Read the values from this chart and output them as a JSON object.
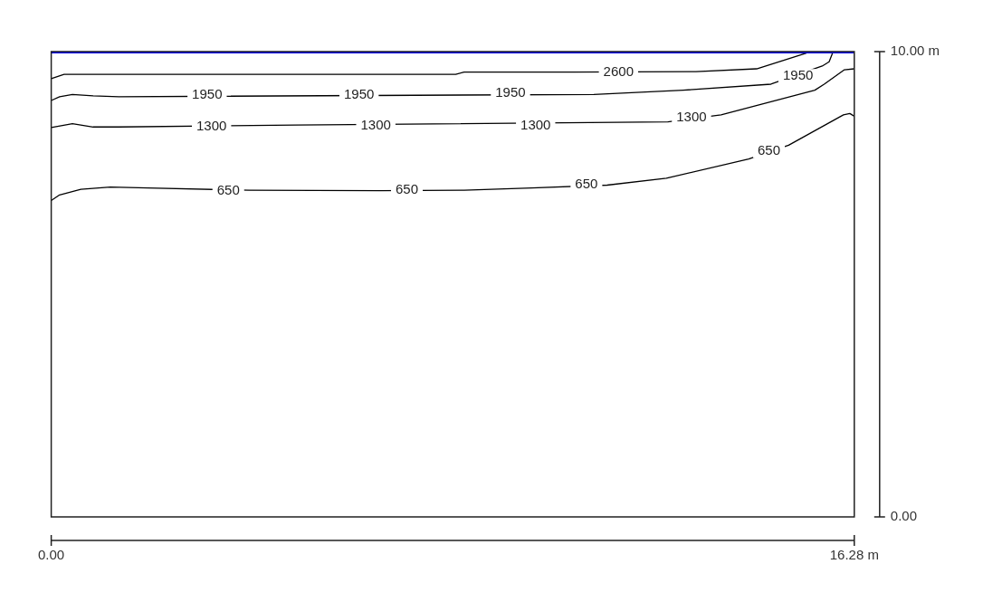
{
  "chart_data": {
    "type": "line",
    "xlim": [
      0,
      16.28
    ],
    "ylim": [
      0,
      10
    ],
    "xticks": [
      {
        "value": 0,
        "label": "0.00"
      },
      {
        "value": 16.28,
        "label": "16.28 m"
      }
    ],
    "yticks": [
      {
        "value": 0,
        "label": "0.00"
      },
      {
        "value": 10,
        "label": "10.00 m"
      }
    ],
    "series": [
      {
        "color": "#0000ee",
        "x": [
          0,
          16.28
        ],
        "values": [
          10,
          10
        ]
      },
      {
        "color": "#000000",
        "x": [
          0,
          0.26,
          8.2,
          8.37,
          10.6,
          13.07,
          14.3,
          15.31
        ],
        "values": [
          9.42,
          9.51,
          9.51,
          9.56,
          9.56,
          9.57,
          9.63,
          9.97
        ]
      },
      {
        "color": "#000000",
        "x": [
          0,
          0.17,
          0.43,
          0.85,
          1.37,
          11.0,
          12.81,
          14.59,
          15.63,
          15.77,
          15.84
        ],
        "values": [
          8.95,
          9.03,
          9.08,
          9.05,
          9.03,
          9.08,
          9.17,
          9.3,
          9.69,
          9.78,
          9.97
        ]
      },
      {
        "color": "#000000",
        "x": [
          0,
          0.43,
          0.85,
          1.37,
          4.95,
          12.5,
          13.58,
          15.48,
          15.67,
          16.08,
          16.28
        ],
        "values": [
          8.37,
          8.45,
          8.38,
          8.38,
          8.42,
          8.49,
          8.64,
          9.17,
          9.3,
          9.61,
          9.63
        ]
      },
      {
        "color": "#000000",
        "x": [
          0,
          0.17,
          0.6,
          1.2,
          1.96,
          4.01,
          6.66,
          8.37,
          9.74,
          11.27,
          12.47,
          14.14,
          14.95,
          16.06,
          16.19,
          16.28
        ],
        "values": [
          6.8,
          6.92,
          7.04,
          7.09,
          7.07,
          7.02,
          7.01,
          7.02,
          7.07,
          7.13,
          7.28,
          7.69,
          7.99,
          8.64,
          8.67,
          8.61
        ]
      }
    ],
    "annotations": [
      {
        "text": "2600",
        "x": 11.5,
        "y": 9.56
      },
      {
        "text": "1950",
        "x": 3.16,
        "y": 9.06
      },
      {
        "text": "1950",
        "x": 6.24,
        "y": 9.06
      },
      {
        "text": "1950",
        "x": 9.31,
        "y": 9.1
      },
      {
        "text": "1950",
        "x": 15.14,
        "y": 9.47
      },
      {
        "text": "1300",
        "x": 3.25,
        "y": 8.38
      },
      {
        "text": "1300",
        "x": 6.58,
        "y": 8.4
      },
      {
        "text": "1300",
        "x": 9.82,
        "y": 8.4
      },
      {
        "text": "1300",
        "x": 12.98,
        "y": 8.58
      },
      {
        "text": "650",
        "x": 3.59,
        "y": 7.01
      },
      {
        "text": "650",
        "x": 7.21,
        "y": 7.02
      },
      {
        "text": "650",
        "x": 10.85,
        "y": 7.14
      },
      {
        "text": "650",
        "x": 14.55,
        "y": 7.87
      }
    ]
  }
}
